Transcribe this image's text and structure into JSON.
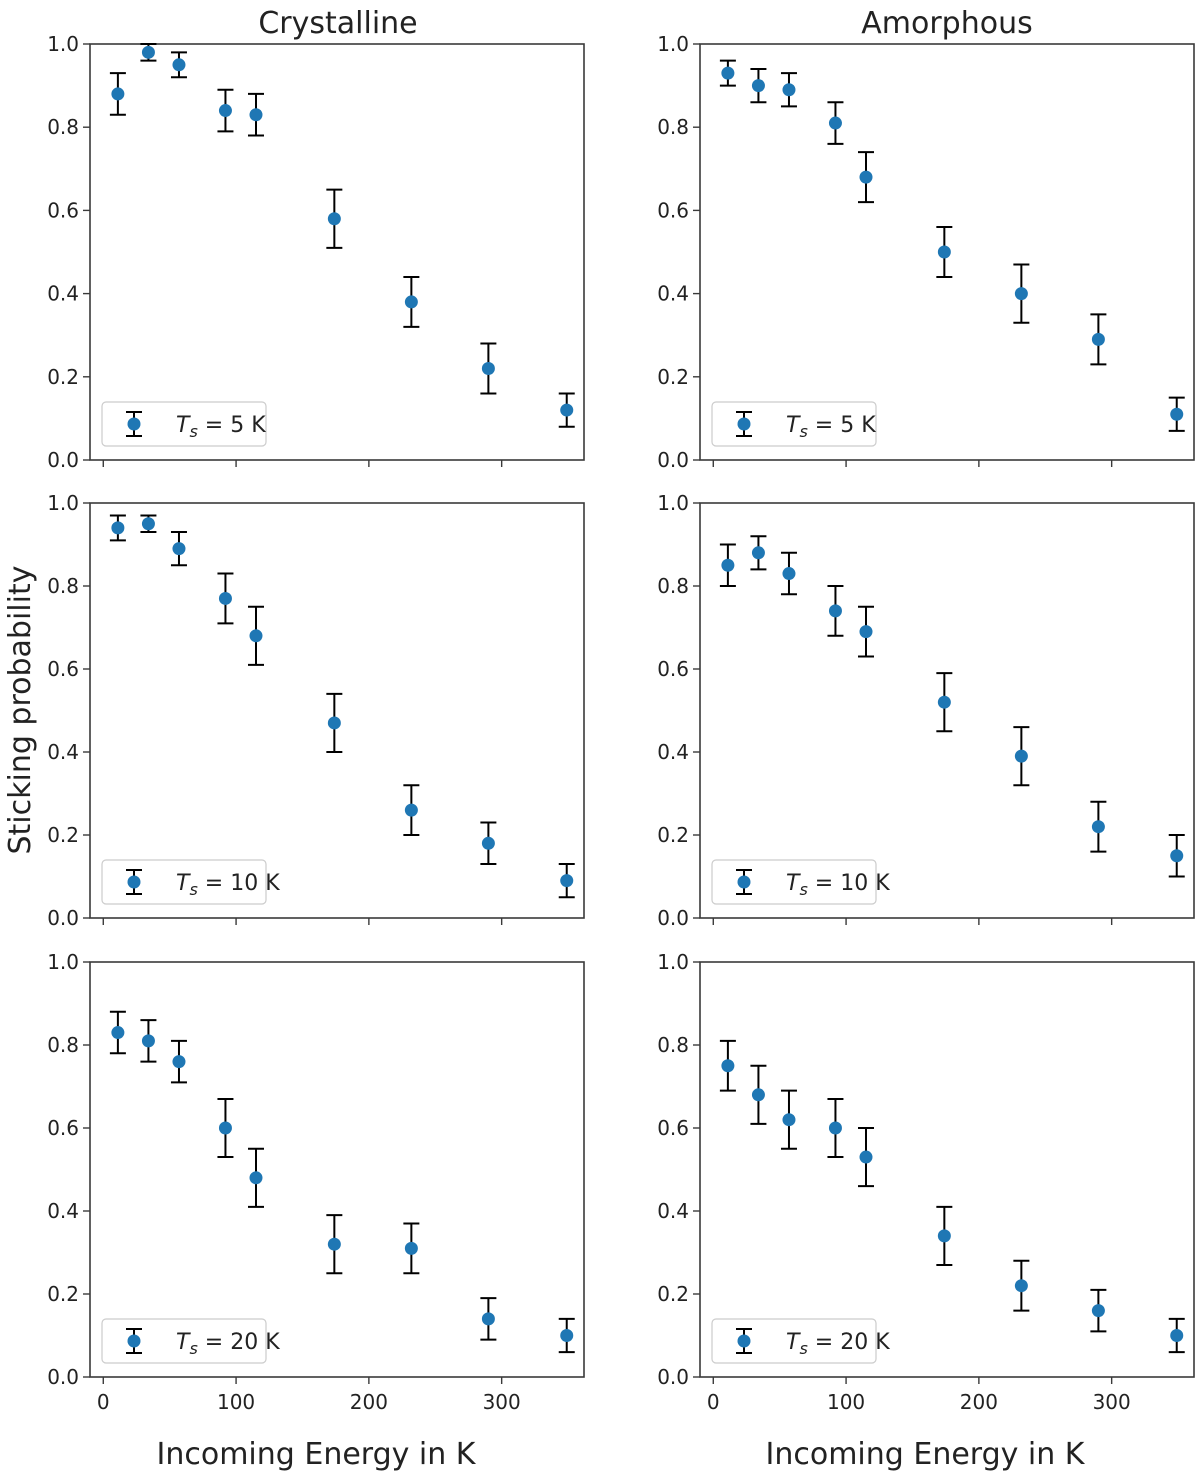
{
  "chart_data": {
    "type": "scatter",
    "layout": "3x2 grid of panels",
    "column_titles": [
      "Crystalline",
      "Amorphous"
    ],
    "ylabel": "Sticking probability",
    "xlabel": "Incoming Energy in K",
    "xlim": [
      -10,
      362
    ],
    "ylim": [
      0,
      1
    ],
    "x_ticks": [
      0,
      100,
      200,
      300
    ],
    "x_tick_labels": [
      "0",
      "100",
      "200",
      "300"
    ],
    "y_ticks": [
      0,
      0.2,
      0.4,
      0.6,
      0.8,
      1.0
    ],
    "y_tick_labels": [
      "0.0",
      "0.2",
      "0.4",
      "0.6",
      "0.8",
      "1.0"
    ],
    "marker_color": "#1f77b4",
    "errorbar_color": "#000000",
    "legend_position": "lower-left",
    "x": [
      11,
      34,
      57,
      92,
      115,
      174,
      232,
      290,
      349
    ],
    "panels": [
      {
        "column": "Crystalline",
        "row": 0,
        "legend": {
          "prefix": "T",
          "subscript": "s",
          "suffix": " = 5 K"
        },
        "y": [
          0.88,
          0.98,
          0.95,
          0.84,
          0.83,
          0.58,
          0.38,
          0.22,
          0.12
        ],
        "yerr": [
          0.05,
          0.02,
          0.03,
          0.05,
          0.05,
          0.07,
          0.06,
          0.06,
          0.04
        ]
      },
      {
        "column": "Amorphous",
        "row": 0,
        "legend": {
          "prefix": "T",
          "subscript": "s",
          "suffix": " = 5 K"
        },
        "y": [
          0.93,
          0.9,
          0.89,
          0.81,
          0.68,
          0.5,
          0.4,
          0.29,
          0.11
        ],
        "yerr": [
          0.03,
          0.04,
          0.04,
          0.05,
          0.06,
          0.06,
          0.07,
          0.06,
          0.04
        ]
      },
      {
        "column": "Crystalline",
        "row": 1,
        "legend": {
          "prefix": "T",
          "subscript": "s",
          "suffix": " = 10 K"
        },
        "y": [
          0.94,
          0.95,
          0.89,
          0.77,
          0.68,
          0.47,
          0.26,
          0.18,
          0.09
        ],
        "yerr": [
          0.03,
          0.02,
          0.04,
          0.06,
          0.07,
          0.07,
          0.06,
          0.05,
          0.04
        ]
      },
      {
        "column": "Amorphous",
        "row": 1,
        "legend": {
          "prefix": "T",
          "subscript": "s",
          "suffix": " = 10 K"
        },
        "y": [
          0.85,
          0.88,
          0.83,
          0.74,
          0.69,
          0.52,
          0.39,
          0.22,
          0.15
        ],
        "yerr": [
          0.05,
          0.04,
          0.05,
          0.06,
          0.06,
          0.07,
          0.07,
          0.06,
          0.05
        ]
      },
      {
        "column": "Crystalline",
        "row": 2,
        "legend": {
          "prefix": "T",
          "subscript": "s",
          "suffix": " = 20 K"
        },
        "y": [
          0.83,
          0.81,
          0.76,
          0.6,
          0.48,
          0.32,
          0.31,
          0.14,
          0.1
        ],
        "yerr": [
          0.05,
          0.05,
          0.05,
          0.07,
          0.07,
          0.07,
          0.06,
          0.05,
          0.04
        ]
      },
      {
        "column": "Amorphous",
        "row": 2,
        "legend": {
          "prefix": "T",
          "subscript": "s",
          "suffix": " = 20 K"
        },
        "y": [
          0.75,
          0.68,
          0.62,
          0.6,
          0.53,
          0.34,
          0.22,
          0.16,
          0.1
        ],
        "yerr": [
          0.06,
          0.07,
          0.07,
          0.07,
          0.07,
          0.07,
          0.06,
          0.05,
          0.04
        ]
      }
    ]
  }
}
